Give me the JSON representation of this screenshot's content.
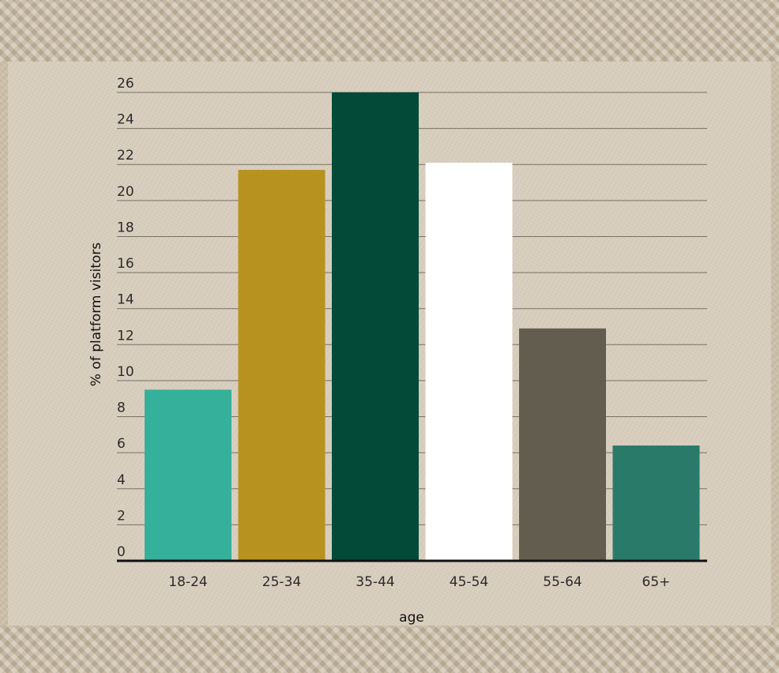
{
  "chart_data": {
    "type": "bar",
    "categories": [
      "18-24",
      "25-34",
      "35-44",
      "45-54",
      "55-64",
      "65+"
    ],
    "values": [
      9.5,
      21.7,
      26,
      22.1,
      12.9,
      6.4
    ],
    "colors": [
      "#35b09a",
      "#b8921e",
      "#034a38",
      "#ffffff",
      "#625d4f",
      "#2a7a6a"
    ],
    "xlabel": "age",
    "ylabel": "% of platform visitors",
    "ylim": [
      0,
      26
    ],
    "yticks": [
      0,
      2,
      4,
      6,
      8,
      10,
      12,
      14,
      16,
      18,
      20,
      22,
      24,
      26
    ],
    "grid": true
  }
}
